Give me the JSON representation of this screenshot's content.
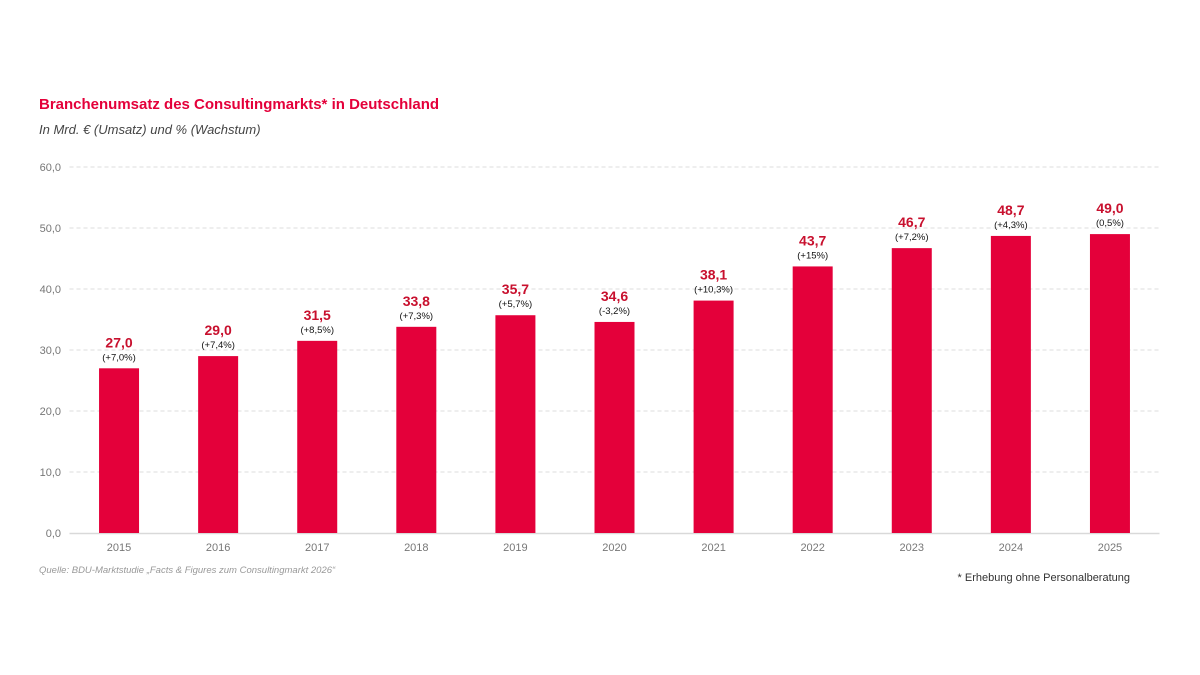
{
  "chart_data": {
    "type": "bar",
    "title": "Branchenumsatz des Consultingmarkts* in Deutschland",
    "subtitle": "In Mrd. € (Umsatz) und % (Wachstum)",
    "categories": [
      "2015",
      "2016",
      "2017",
      "2018",
      "2019",
      "2020",
      "2021",
      "2022",
      "2023",
      "2024",
      "2025"
    ],
    "values": [
      27.0,
      29.0,
      31.5,
      33.8,
      35.7,
      34.6,
      38.1,
      43.7,
      46.7,
      48.7,
      49.0
    ],
    "value_labels": [
      "27,0",
      "29,0",
      "31,5",
      "33,8",
      "35,7",
      "34,6",
      "38,1",
      "43,7",
      "46,7",
      "48,7",
      "49,0"
    ],
    "growth_labels": [
      "(+7,0%)",
      "(+7,4%)",
      "(+8,5%)",
      "(+7,3%)",
      "(+5,7%)",
      "(-3,2%)",
      "(+10,3%)",
      "(+15%)",
      "(+7,2%)",
      "(+4,3%)",
      "(0,5%)"
    ],
    "yticks": [
      0,
      10,
      20,
      30,
      40,
      50,
      60
    ],
    "ytick_labels": [
      "0,0",
      "10,0",
      "20,0",
      "30,0",
      "40,0",
      "50,0",
      "60,0"
    ],
    "ylim": [
      0,
      60
    ],
    "grid": true,
    "xlabel": "",
    "ylabel": "",
    "bar_color": "#e4003a",
    "label_color": "#c8102e",
    "source": "Quelle: BDU-Marktstudie „Facts & Figures zum Consultingmarkt 2026“",
    "footnote": "* Erhebung ohne Personalberatung"
  }
}
